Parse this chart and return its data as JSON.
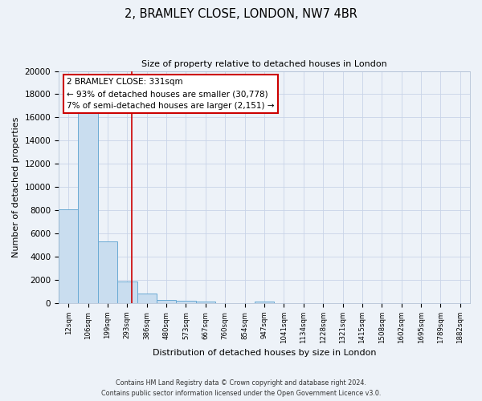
{
  "title": "2, BRAMLEY CLOSE, LONDON, NW7 4BR",
  "subtitle": "Size of property relative to detached houses in London",
  "xlabel": "Distribution of detached houses by size in London",
  "ylabel": "Number of detached properties",
  "bin_labels": [
    "12sqm",
    "106sqm",
    "199sqm",
    "293sqm",
    "386sqm",
    "480sqm",
    "573sqm",
    "667sqm",
    "760sqm",
    "854sqm",
    "947sqm",
    "1041sqm",
    "1134sqm",
    "1228sqm",
    "1321sqm",
    "1415sqm",
    "1508sqm",
    "1602sqm",
    "1695sqm",
    "1789sqm",
    "1882sqm"
  ],
  "bar_heights": [
    8100,
    16600,
    5300,
    1850,
    800,
    300,
    200,
    150,
    0,
    0,
    150,
    0,
    0,
    0,
    0,
    0,
    0,
    0,
    0,
    0,
    0
  ],
  "bar_color": "#c9ddef",
  "bar_edge_color": "#6aaad4",
  "property_line_x": 3.22,
  "property_line_color": "#cc0000",
  "annotation_line1": "2 BRAMLEY CLOSE: 331sqm",
  "annotation_line2": "← 93% of detached houses are smaller (30,778)",
  "annotation_line3": "7% of semi-detached houses are larger (2,151) →",
  "annotation_box_color": "#ffffff",
  "annotation_box_edge": "#cc0000",
  "ylim": [
    0,
    20000
  ],
  "yticks": [
    0,
    2000,
    4000,
    6000,
    8000,
    10000,
    12000,
    14000,
    16000,
    18000,
    20000
  ],
  "grid_color": "#c8d4e8",
  "bg_color": "#edf2f8",
  "footer_line1": "Contains HM Land Registry data © Crown copyright and database right 2024.",
  "footer_line2": "Contains public sector information licensed under the Open Government Licence v3.0."
}
